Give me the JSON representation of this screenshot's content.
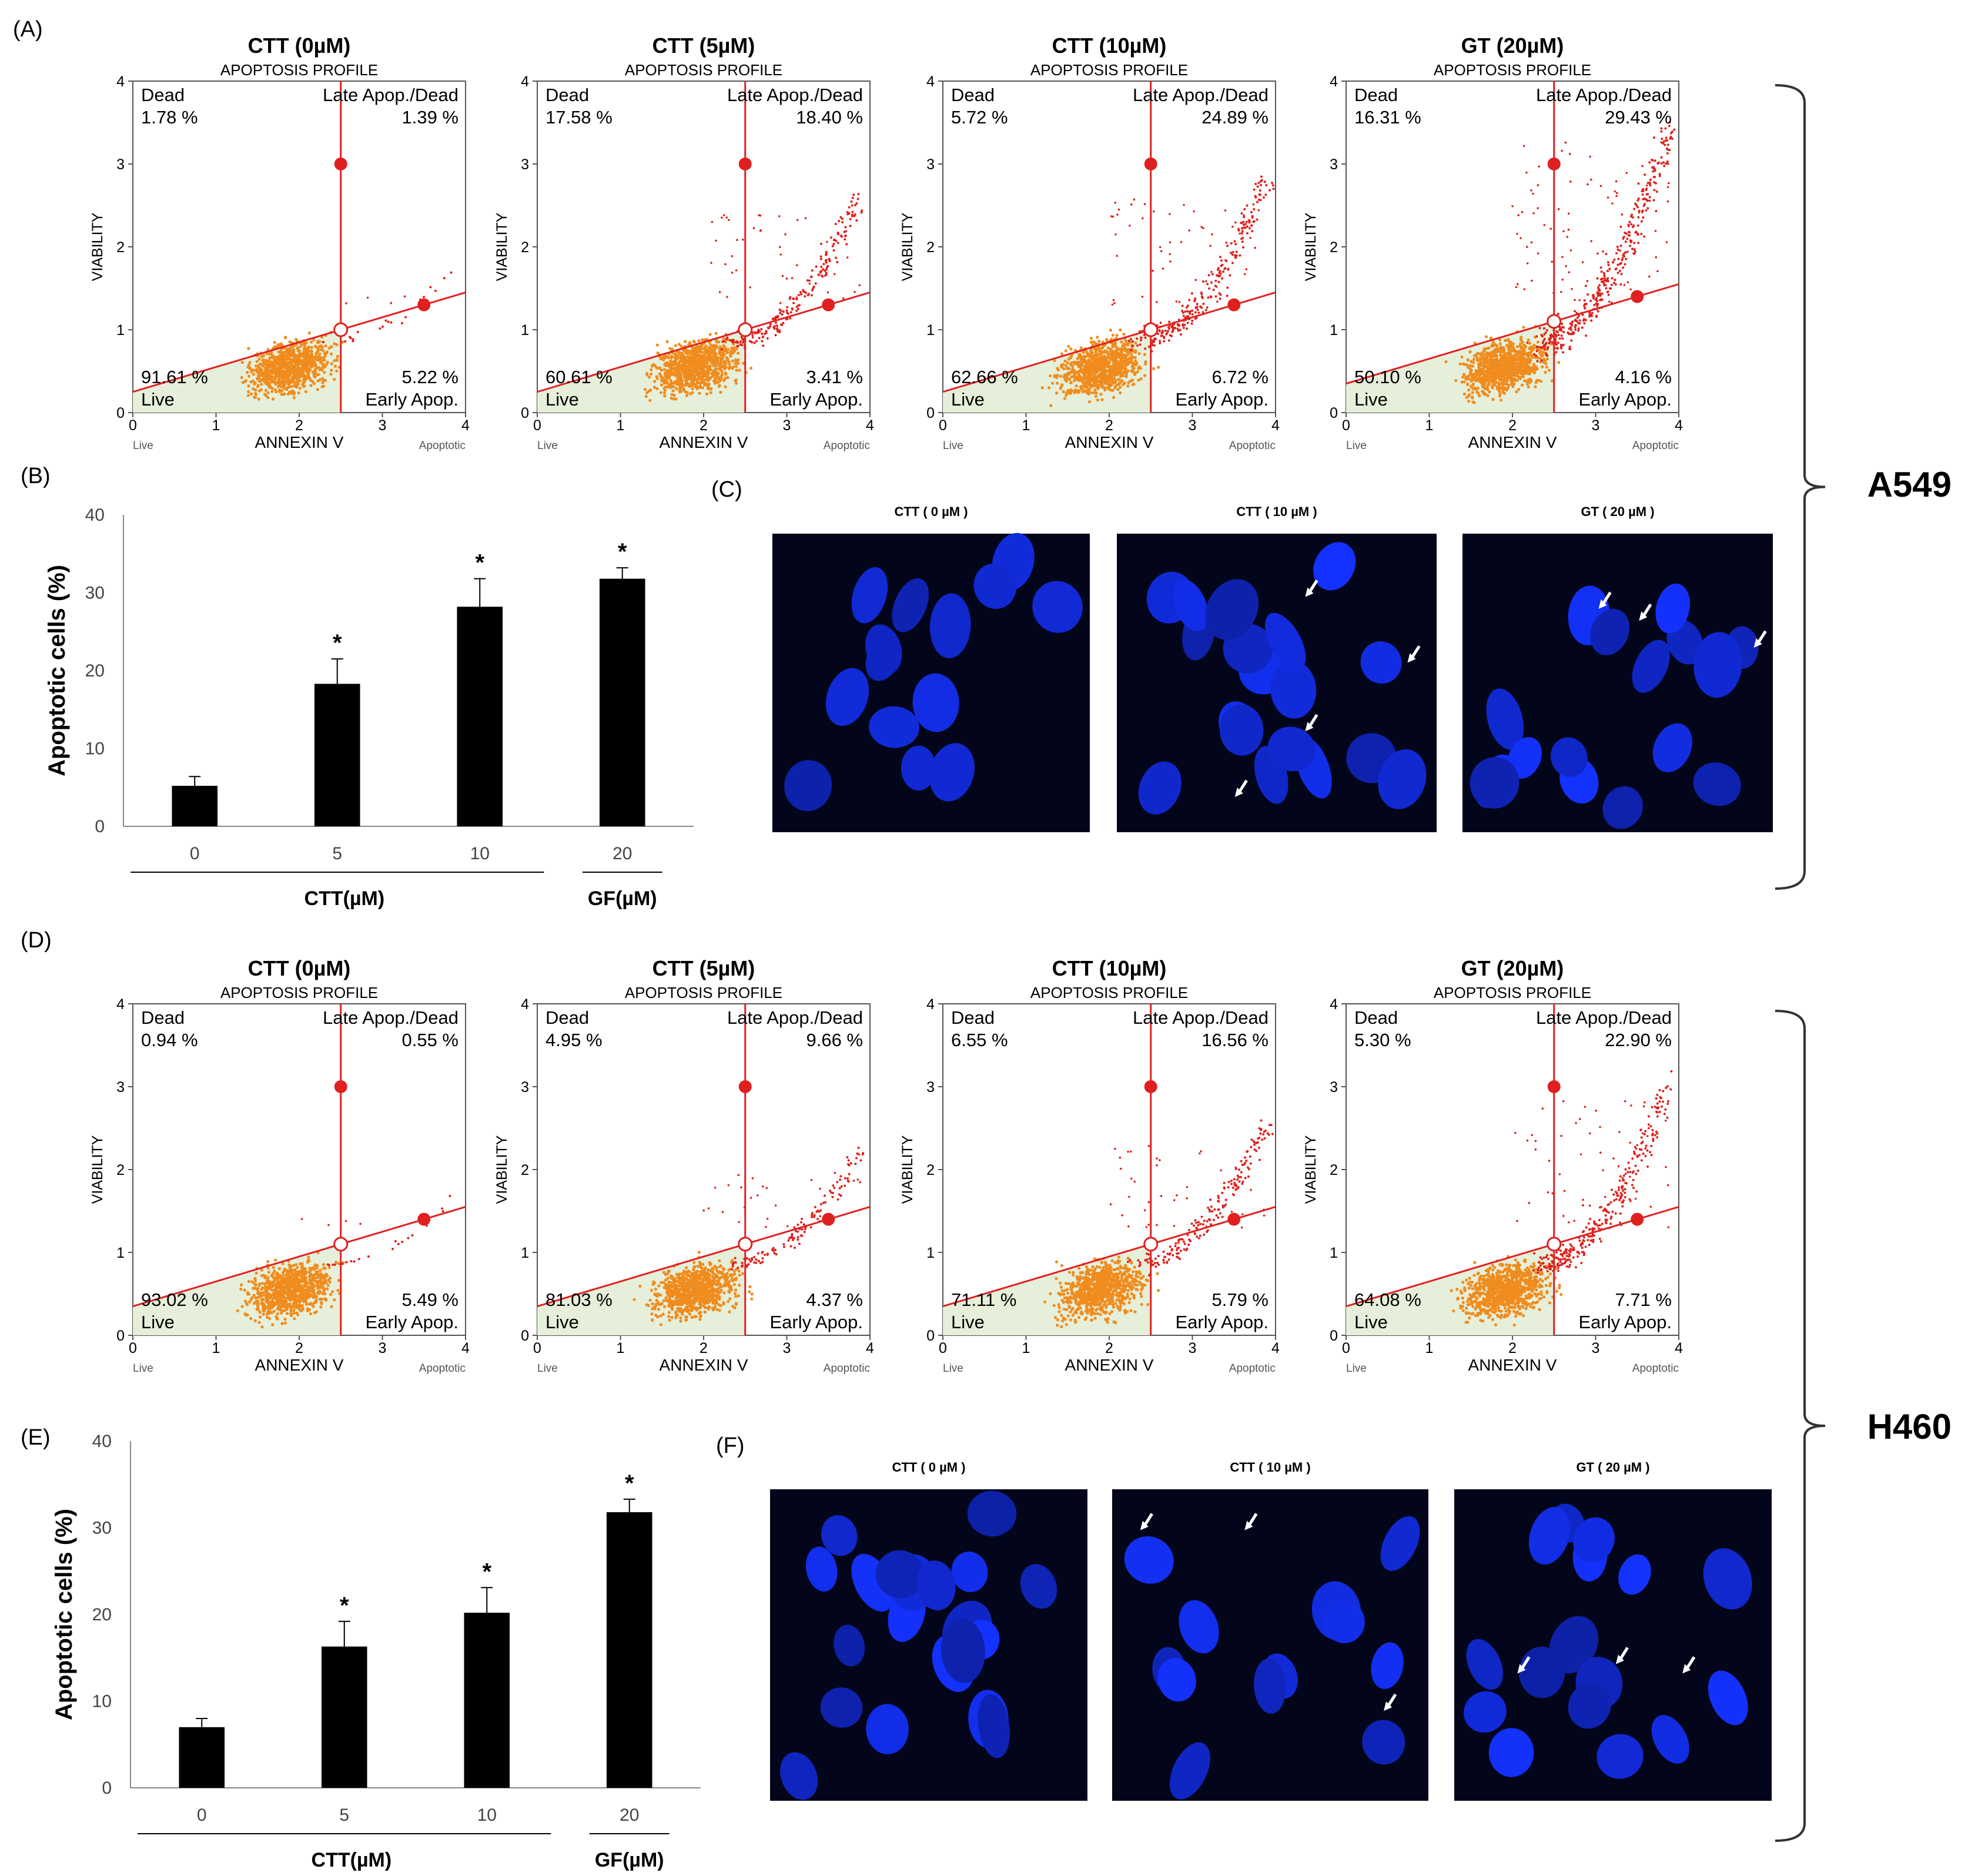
{
  "panel_labels": {
    "A": "(A)",
    "B": "(B)",
    "C": "(C)",
    "D": "(D)",
    "E": "(E)",
    "F": "(F)"
  },
  "cell_lines": {
    "top": "A549",
    "bottom": "H460"
  },
  "flow_common": {
    "subtitle": "APOPTOSIS PROFILE",
    "x_label": "ANNEXIN V",
    "y_label": "VIABILITY",
    "x_left_label": "Live",
    "x_right_label": "Apoptotic",
    "ticks": [
      "0",
      "1",
      "2",
      "3",
      "4"
    ],
    "q_dead": "Dead",
    "q_late": "Late Apop./Dead",
    "q_live": "Live",
    "q_early": "Early Apop."
  },
  "chart_data": [
    {
      "type": "scatter",
      "id": "A549-CTT0",
      "title": "CTT (0µM)",
      "dead": "1.78 %",
      "late": "1.39 %",
      "live": "91.61 %",
      "early": "5.22 %",
      "xlim": [
        0,
        4
      ],
      "ylim": [
        0,
        4
      ],
      "gate_x": 2.5,
      "gate_y": 1.0,
      "spread": 0.05
    },
    {
      "type": "scatter",
      "id": "A549-CTT5",
      "title": "CTT (5µM)",
      "dead": "17.58 %",
      "late": "18.40 %",
      "live": "60.61 %",
      "early": "3.41 %",
      "xlim": [
        0,
        4
      ],
      "ylim": [
        0,
        4
      ],
      "gate_x": 2.5,
      "gate_y": 1.0,
      "spread": 0.5
    },
    {
      "type": "scatter",
      "id": "A549-CTT10",
      "title": "CTT (10µM)",
      "dead": "5.72 %",
      "late": "24.89 %",
      "live": "62.66 %",
      "early": "6.72 %",
      "xlim": [
        0,
        4
      ],
      "ylim": [
        0,
        4
      ],
      "gate_x": 2.5,
      "gate_y": 1.0,
      "spread": 0.6
    },
    {
      "type": "scatter",
      "id": "A549-GT20",
      "title": "GT (20µM)",
      "dead": "16.31 %",
      "late": "29.43 %",
      "live": "50.10 %",
      "early": "4.16 %",
      "xlim": [
        0,
        4
      ],
      "ylim": [
        0,
        4
      ],
      "gate_x": 2.5,
      "gate_y": 1.1,
      "spread": 0.9
    },
    {
      "type": "scatter",
      "id": "H460-CTT0",
      "title": "CTT (0µM)",
      "dead": "0.94 %",
      "late": "0.55 %",
      "live": "93.02 %",
      "early": "5.49 %",
      "xlim": [
        0,
        4
      ],
      "ylim": [
        0,
        4
      ],
      "gate_x": 2.5,
      "gate_y": 1.1,
      "spread": 0.05
    },
    {
      "type": "scatter",
      "id": "H460-CTT5",
      "title": "CTT (5µM)",
      "dead": "4.95 %",
      "late": "9.66 %",
      "live": "81.03 %",
      "early": "4.37 %",
      "xlim": [
        0,
        4
      ],
      "ylim": [
        0,
        4
      ],
      "gate_x": 2.5,
      "gate_y": 1.1,
      "spread": 0.3
    },
    {
      "type": "scatter",
      "id": "H460-CTT10",
      "title": "CTT (10µM)",
      "dead": "6.55 %",
      "late": "16.56 %",
      "live": "71.11 %",
      "early": "5.79 %",
      "xlim": [
        0,
        4
      ],
      "ylim": [
        0,
        4
      ],
      "gate_x": 2.5,
      "gate_y": 1.1,
      "spread": 0.45
    },
    {
      "type": "scatter",
      "id": "H460-GT20",
      "title": "GT (20µM)",
      "dead": "5.30 %",
      "late": "22.90 %",
      "live": "64.08 %",
      "early": "7.71 %",
      "xlim": [
        0,
        4
      ],
      "ylim": [
        0,
        4
      ],
      "gate_x": 2.5,
      "gate_y": 1.1,
      "spread": 0.7
    },
    {
      "type": "bar",
      "id": "B",
      "categories": [
        "0",
        "5",
        "10",
        "20"
      ],
      "values": [
        5.2,
        18.3,
        28.2,
        31.8
      ],
      "errors": [
        1.2,
        3.2,
        3.6,
        1.4
      ],
      "significant": [
        false,
        true,
        true,
        true
      ],
      "sig_mark": "*",
      "ylabel": "Apoptotic cells (%)",
      "ylim": [
        0,
        40
      ],
      "yticks": [
        "0",
        "10",
        "20",
        "30",
        "40"
      ],
      "group_labels": [
        "CTT(µM)",
        "GF(µM)"
      ]
    },
    {
      "type": "bar",
      "id": "E",
      "categories": [
        "0",
        "5",
        "10",
        "20"
      ],
      "values": [
        7.0,
        16.3,
        20.2,
        31.8
      ],
      "errors": [
        1.0,
        2.9,
        2.9,
        1.5
      ],
      "significant": [
        false,
        true,
        true,
        true
      ],
      "sig_mark": "*",
      "ylabel": "Apoptotic cells (%)",
      "ylim": [
        0,
        40
      ],
      "yticks": [
        "0",
        "10",
        "20",
        "30",
        "40"
      ],
      "group_labels": [
        "CTT(µM)",
        "GF(µM)"
      ]
    }
  ],
  "images": [
    {
      "id": "C",
      "titles": [
        "CTT ( 0 µM )",
        "CTT ( 10 µM )",
        "GT ( 20 µM )"
      ]
    },
    {
      "id": "F",
      "titles": [
        "CTT ( 0 µM )",
        "CTT ( 10 µM )",
        "GT ( 20 µM )"
      ]
    }
  ]
}
